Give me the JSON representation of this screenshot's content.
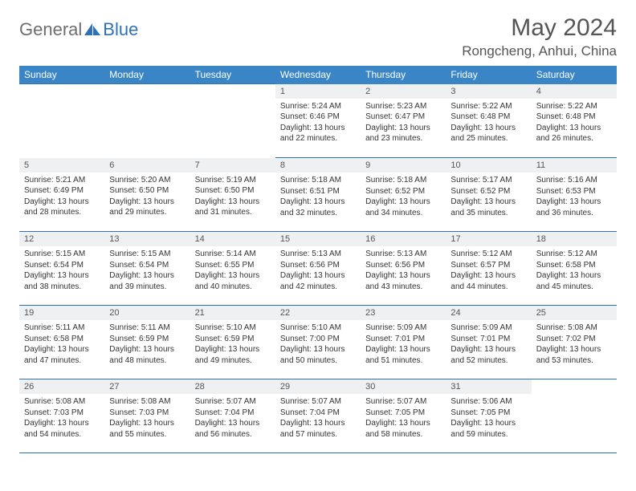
{
  "logo": {
    "general": "General",
    "blue": "Blue"
  },
  "title": "May 2024",
  "location": "Rongcheng, Anhui, China",
  "weekdays": [
    "Sunday",
    "Monday",
    "Tuesday",
    "Wednesday",
    "Thursday",
    "Friday",
    "Saturday"
  ],
  "colors": {
    "header_bg": "#3a85c6",
    "border": "#2e72b5",
    "daynum_bg": "#eef0f2",
    "text": "#555555",
    "logo_gray": "#6e6e6e",
    "logo_blue": "#2e72b5"
  },
  "weeks": [
    [
      null,
      null,
      null,
      {
        "n": "1",
        "sr": "5:24 AM",
        "ss": "6:46 PM",
        "dl": "13 hours and 22 minutes."
      },
      {
        "n": "2",
        "sr": "5:23 AM",
        "ss": "6:47 PM",
        "dl": "13 hours and 23 minutes."
      },
      {
        "n": "3",
        "sr": "5:22 AM",
        "ss": "6:48 PM",
        "dl": "13 hours and 25 minutes."
      },
      {
        "n": "4",
        "sr": "5:22 AM",
        "ss": "6:48 PM",
        "dl": "13 hours and 26 minutes."
      }
    ],
    [
      {
        "n": "5",
        "sr": "5:21 AM",
        "ss": "6:49 PM",
        "dl": "13 hours and 28 minutes."
      },
      {
        "n": "6",
        "sr": "5:20 AM",
        "ss": "6:50 PM",
        "dl": "13 hours and 29 minutes."
      },
      {
        "n": "7",
        "sr": "5:19 AM",
        "ss": "6:50 PM",
        "dl": "13 hours and 31 minutes."
      },
      {
        "n": "8",
        "sr": "5:18 AM",
        "ss": "6:51 PM",
        "dl": "13 hours and 32 minutes."
      },
      {
        "n": "9",
        "sr": "5:18 AM",
        "ss": "6:52 PM",
        "dl": "13 hours and 34 minutes."
      },
      {
        "n": "10",
        "sr": "5:17 AM",
        "ss": "6:52 PM",
        "dl": "13 hours and 35 minutes."
      },
      {
        "n": "11",
        "sr": "5:16 AM",
        "ss": "6:53 PM",
        "dl": "13 hours and 36 minutes."
      }
    ],
    [
      {
        "n": "12",
        "sr": "5:15 AM",
        "ss": "6:54 PM",
        "dl": "13 hours and 38 minutes."
      },
      {
        "n": "13",
        "sr": "5:15 AM",
        "ss": "6:54 PM",
        "dl": "13 hours and 39 minutes."
      },
      {
        "n": "14",
        "sr": "5:14 AM",
        "ss": "6:55 PM",
        "dl": "13 hours and 40 minutes."
      },
      {
        "n": "15",
        "sr": "5:13 AM",
        "ss": "6:56 PM",
        "dl": "13 hours and 42 minutes."
      },
      {
        "n": "16",
        "sr": "5:13 AM",
        "ss": "6:56 PM",
        "dl": "13 hours and 43 minutes."
      },
      {
        "n": "17",
        "sr": "5:12 AM",
        "ss": "6:57 PM",
        "dl": "13 hours and 44 minutes."
      },
      {
        "n": "18",
        "sr": "5:12 AM",
        "ss": "6:58 PM",
        "dl": "13 hours and 45 minutes."
      }
    ],
    [
      {
        "n": "19",
        "sr": "5:11 AM",
        "ss": "6:58 PM",
        "dl": "13 hours and 47 minutes."
      },
      {
        "n": "20",
        "sr": "5:11 AM",
        "ss": "6:59 PM",
        "dl": "13 hours and 48 minutes."
      },
      {
        "n": "21",
        "sr": "5:10 AM",
        "ss": "6:59 PM",
        "dl": "13 hours and 49 minutes."
      },
      {
        "n": "22",
        "sr": "5:10 AM",
        "ss": "7:00 PM",
        "dl": "13 hours and 50 minutes."
      },
      {
        "n": "23",
        "sr": "5:09 AM",
        "ss": "7:01 PM",
        "dl": "13 hours and 51 minutes."
      },
      {
        "n": "24",
        "sr": "5:09 AM",
        "ss": "7:01 PM",
        "dl": "13 hours and 52 minutes."
      },
      {
        "n": "25",
        "sr": "5:08 AM",
        "ss": "7:02 PM",
        "dl": "13 hours and 53 minutes."
      }
    ],
    [
      {
        "n": "26",
        "sr": "5:08 AM",
        "ss": "7:03 PM",
        "dl": "13 hours and 54 minutes."
      },
      {
        "n": "27",
        "sr": "5:08 AM",
        "ss": "7:03 PM",
        "dl": "13 hours and 55 minutes."
      },
      {
        "n": "28",
        "sr": "5:07 AM",
        "ss": "7:04 PM",
        "dl": "13 hours and 56 minutes."
      },
      {
        "n": "29",
        "sr": "5:07 AM",
        "ss": "7:04 PM",
        "dl": "13 hours and 57 minutes."
      },
      {
        "n": "30",
        "sr": "5:07 AM",
        "ss": "7:05 PM",
        "dl": "13 hours and 58 minutes."
      },
      {
        "n": "31",
        "sr": "5:06 AM",
        "ss": "7:05 PM",
        "dl": "13 hours and 59 minutes."
      },
      null
    ]
  ],
  "labels": {
    "sunrise": "Sunrise:",
    "sunset": "Sunset:",
    "daylight": "Daylight:"
  }
}
